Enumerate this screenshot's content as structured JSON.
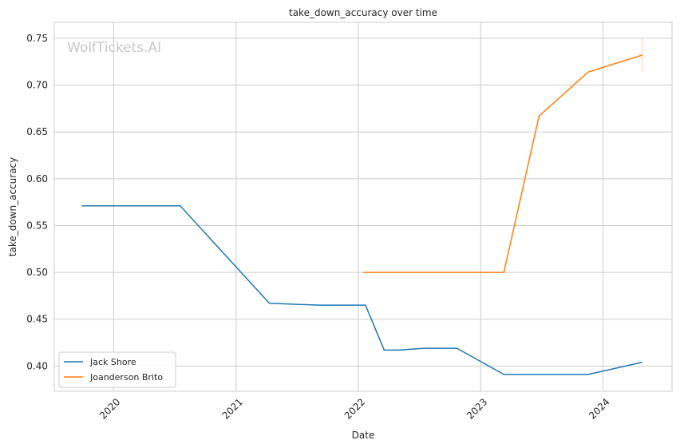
{
  "chart_data": {
    "type": "line",
    "title": "take_down_accuracy over time",
    "xlabel": "Date",
    "ylabel": "take_down_accuracy",
    "watermark": "WolfTickets.AI",
    "x_tick_labels": [
      "2020",
      "2021",
      "2022",
      "2023",
      "2024"
    ],
    "y_tick_labels": [
      "0.40",
      "0.45",
      "0.50",
      "0.55",
      "0.60",
      "0.65",
      "0.70",
      "0.75"
    ],
    "y_ticks": [
      0.4,
      0.45,
      0.5,
      0.55,
      0.6,
      0.65,
      0.7,
      0.75
    ],
    "xlim": [
      "2019-07-08",
      "2024-07-25"
    ],
    "ylim": [
      0.373,
      0.767
    ],
    "grid": true,
    "legend_position": "lower-left",
    "series": [
      {
        "name": "Jack Shore",
        "color": "#1f77b4",
        "points": [
          {
            "x": "2019-09-28",
            "y": 0.571
          },
          {
            "x": "2020-07-18",
            "y": 0.571
          },
          {
            "x": "2021-04-10",
            "y": 0.467
          },
          {
            "x": "2021-09-04",
            "y": 0.465
          },
          {
            "x": "2022-01-22",
            "y": 0.465
          },
          {
            "x": "2022-03-19",
            "y": 0.417
          },
          {
            "x": "2022-04-30",
            "y": 0.417
          },
          {
            "x": "2022-07-16",
            "y": 0.419
          },
          {
            "x": "2022-10-22",
            "y": 0.419
          },
          {
            "x": "2023-03-11",
            "y": 0.391
          },
          {
            "x": "2023-11-18",
            "y": 0.391
          },
          {
            "x": "2024-04-27",
            "y": 0.404
          }
        ]
      },
      {
        "name": "Joanderson Brito",
        "color": "#ff7f0e",
        "points": [
          {
            "x": "2022-01-15",
            "y": 0.5
          },
          {
            "x": "2023-03-11",
            "y": 0.5
          },
          {
            "x": "2023-06-24",
            "y": 0.667
          },
          {
            "x": "2023-11-18",
            "y": 0.714
          },
          {
            "x": "2024-04-27",
            "y": 0.732
          }
        ],
        "end_error_bar": [
          0.714,
          0.75
        ]
      }
    ]
  }
}
